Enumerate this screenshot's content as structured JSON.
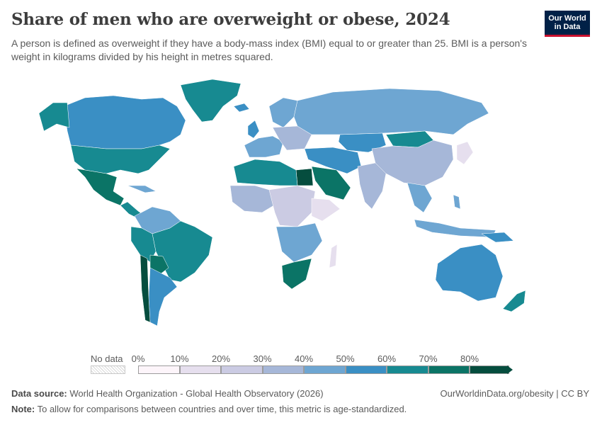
{
  "header": {
    "title": "Share of men who are overweight or obese, 2024",
    "subtitle": "A person is defined as overweight if they have a body-mass index (BMI) equal to or greater than 25. BMI is a person's weight in kilograms divided by his height in metres squared."
  },
  "logo": {
    "line1": "Our World",
    "line2": "in Data"
  },
  "legend": {
    "no_data_label": "No data",
    "ticks": [
      "0%",
      "10%",
      "20%",
      "30%",
      "40%",
      "50%",
      "60%",
      "70%",
      "80%"
    ],
    "colors": [
      "#fdf5fa",
      "#e6dfee",
      "#cbcbe3",
      "#a6b7d8",
      "#6ea6d2",
      "#3a8fc4",
      "#178a91",
      "#0b7466",
      "#054d3e"
    ]
  },
  "footer": {
    "source_label": "Data source:",
    "source_text": "World Health Organization - Global Health Observatory (2026)",
    "note_label": "Note:",
    "note_text": "To allow for comparisons between countries and over time, this metric is age-standardized.",
    "url_text": "OurWorldinData.org/obesity | CC BY"
  }
}
